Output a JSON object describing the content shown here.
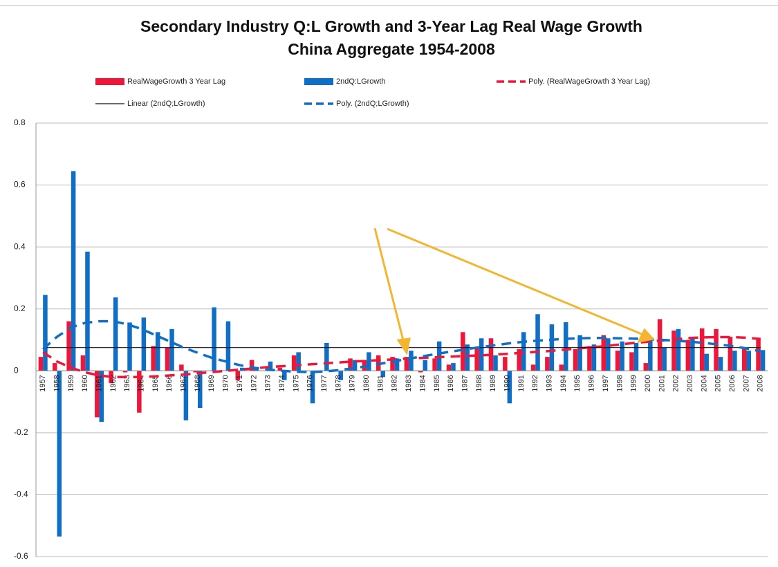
{
  "chart_data": {
    "type": "bar",
    "title": "Secondary Industry Q:L Growth and 3-Year Lag Real Wage Growth",
    "subtitle": "China Aggregate 1954-2008",
    "categories": [
      "1957",
      "1958",
      "1959",
      "1960",
      "1961",
      "1962",
      "1963",
      "1964",
      "1965",
      "1966",
      "1967",
      "1968",
      "1969",
      "1970",
      "1971",
      "1972",
      "1973",
      "1974",
      "1975",
      "1976",
      "1977",
      "1978",
      "1979",
      "1980",
      "1981",
      "1982",
      "1983",
      "1984",
      "1985",
      "1986",
      "1987",
      "1988",
      "1989",
      "1990",
      "1991",
      "1992",
      "1993",
      "1994",
      "1995",
      "1996",
      "1997",
      "1998",
      "1999",
      "2000",
      "2001",
      "2002",
      "2003",
      "2004",
      "2005",
      "2006",
      "2007",
      "2008"
    ],
    "ylim": [
      -0.6,
      0.8
    ],
    "yticks": [
      -0.6,
      -0.4,
      -0.2,
      0,
      0.2,
      0.4,
      0.6,
      0.8
    ],
    "grid": true,
    "series": [
      {
        "name": "RealWageGrowth 3 Year Lag",
        "type": "bar",
        "color": "#f0163a",
        "values": [
          0.045,
          0.025,
          0.16,
          0.05,
          -0.15,
          -0.04,
          -0.005,
          -0.135,
          0.08,
          0.075,
          0.02,
          -0.005,
          0,
          0,
          -0.03,
          0.035,
          0,
          0.01,
          0.05,
          0,
          0,
          0,
          0.04,
          0.035,
          0.05,
          0.045,
          0.045,
          -0.005,
          0.04,
          0.02,
          0.125,
          0.075,
          0.105,
          0.045,
          0.07,
          0.02,
          0.045,
          0.02,
          0.07,
          0.08,
          0.115,
          0.065,
          0.06,
          0.025,
          0.167,
          0.13,
          0.1,
          0.137,
          0.135,
          0.11,
          0.07,
          0.105
        ]
      },
      {
        "name": "2ndQ:LGrowth",
        "type": "bar",
        "color": "#0f6fc6",
        "values": [
          0.245,
          -0.535,
          0.645,
          0.385,
          -0.165,
          0.237,
          0.156,
          0.172,
          0.125,
          0.135,
          -0.16,
          -0.12,
          0.205,
          0.16,
          0.01,
          0.01,
          0.03,
          -0.03,
          0.06,
          -0.105,
          0.09,
          -0.03,
          0.035,
          0.06,
          -0.02,
          0.04,
          0.065,
          0.035,
          0.095,
          0.025,
          0.085,
          0.105,
          0.05,
          -0.105,
          0.125,
          0.183,
          0.15,
          0.157,
          0.115,
          0.085,
          0.105,
          0.095,
          0.09,
          0.1,
          0.075,
          0.135,
          0.105,
          0.055,
          0.045,
          0.065,
          0.065,
          0.067
        ]
      },
      {
        "name": "Poly. (RealWageGrowth 3 Year Lag)",
        "type": "line",
        "dash": true,
        "color": "#f0163a",
        "values": [
          0.06,
          0.03,
          0.01,
          -0.005,
          -0.015,
          -0.02,
          -0.02,
          -0.02,
          -0.018,
          -0.015,
          -0.012,
          -0.008,
          -0.004,
          0,
          0.004,
          0.008,
          0.012,
          0.015,
          0.018,
          0.021,
          0.024,
          0.027,
          0.03,
          0.032,
          0.035,
          0.037,
          0.04,
          0.042,
          0.044,
          0.046,
          0.048,
          0.05,
          0.052,
          0.055,
          0.058,
          0.061,
          0.064,
          0.068,
          0.072,
          0.076,
          0.08,
          0.085,
          0.09,
          0.094,
          0.098,
          0.102,
          0.106,
          0.108,
          0.109,
          0.109,
          0.107,
          0.103
        ]
      },
      {
        "name": "Linear (2ndQ;LGrowth)",
        "type": "line",
        "dash": false,
        "color": "#111111",
        "values": [
          0.075,
          0.075,
          0.075,
          0.075,
          0.075,
          0.075,
          0.075,
          0.075,
          0.075,
          0.075,
          0.075,
          0.075,
          0.075,
          0.075,
          0.075,
          0.075,
          0.075,
          0.075,
          0.075,
          0.075,
          0.075,
          0.075,
          0.075,
          0.075,
          0.075,
          0.075,
          0.075,
          0.075,
          0.075,
          0.075,
          0.075,
          0.075,
          0.075,
          0.075,
          0.075,
          0.075,
          0.075,
          0.075,
          0.075,
          0.075,
          0.075,
          0.075,
          0.075,
          0.075,
          0.075,
          0.075,
          0.075,
          0.075,
          0.075,
          0.075,
          0.075,
          0.075
        ]
      },
      {
        "name": "Poly. (2ndQ;LGrowth)",
        "type": "line",
        "dash": true,
        "color": "#0f6fc6",
        "values": [
          0.07,
          0.11,
          0.14,
          0.155,
          0.16,
          0.16,
          0.15,
          0.135,
          0.115,
          0.095,
          0.075,
          0.058,
          0.042,
          0.03,
          0.018,
          0.01,
          0.004,
          0,
          -0.003,
          -0.004,
          -0.002,
          0.002,
          0.008,
          0.015,
          0.023,
          0.031,
          0.039,
          0.047,
          0.055,
          0.062,
          0.069,
          0.076,
          0.082,
          0.088,
          0.093,
          0.097,
          0.1,
          0.103,
          0.105,
          0.106,
          0.106,
          0.105,
          0.104,
          0.102,
          0.1,
          0.097,
          0.094,
          0.09,
          0.085,
          0.08,
          0.072,
          0.063
        ]
      }
    ]
  }
}
